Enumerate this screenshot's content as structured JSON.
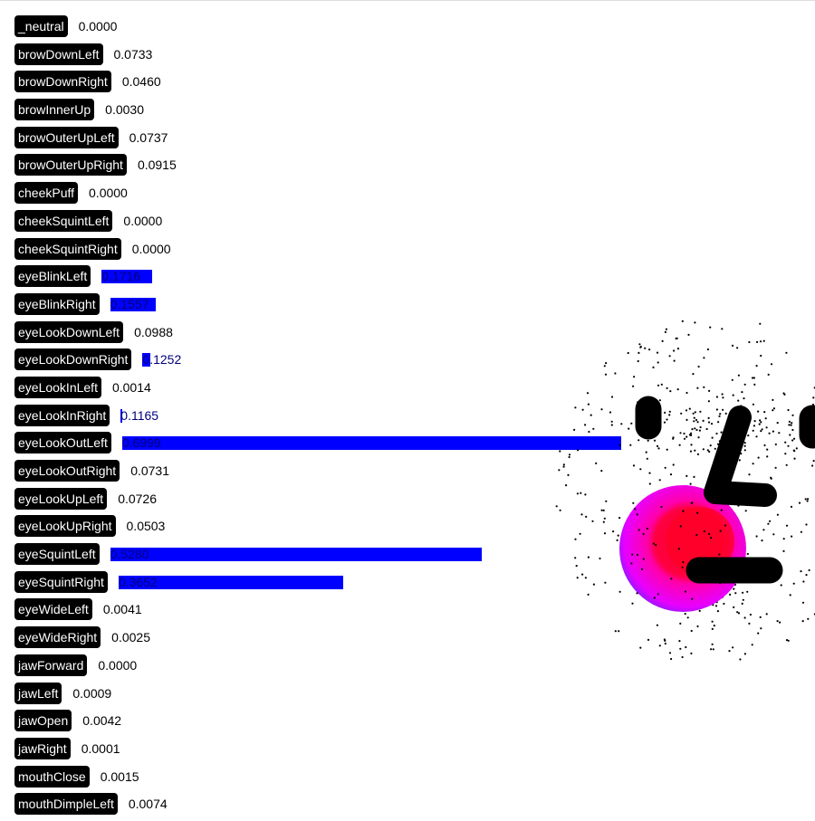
{
  "blendshapes": [
    {
      "name": "_neutral",
      "score": "0.0000"
    },
    {
      "name": "browDownLeft",
      "score": "0.0733"
    },
    {
      "name": "browDownRight",
      "score": "0.0460"
    },
    {
      "name": "browInnerUp",
      "score": "0.0030"
    },
    {
      "name": "browOuterUpLeft",
      "score": "0.0737"
    },
    {
      "name": "browOuterUpRight",
      "score": "0.0915"
    },
    {
      "name": "cheekPuff",
      "score": "0.0000"
    },
    {
      "name": "cheekSquintLeft",
      "score": "0.0000"
    },
    {
      "name": "cheekSquintRight",
      "score": "0.0000"
    },
    {
      "name": "eyeBlinkLeft",
      "score": "0.1716"
    },
    {
      "name": "eyeBlinkRight",
      "score": "0.1557"
    },
    {
      "name": "eyeLookDownLeft",
      "score": "0.0988"
    },
    {
      "name": "eyeLookDownRight",
      "score": "0.1252"
    },
    {
      "name": "eyeLookInLeft",
      "score": "0.0014"
    },
    {
      "name": "eyeLookInRight",
      "score": "0.1165"
    },
    {
      "name": "eyeLookOutLeft",
      "score": "0.6999"
    },
    {
      "name": "eyeLookOutRight",
      "score": "0.0731"
    },
    {
      "name": "eyeLookUpLeft",
      "score": "0.0726"
    },
    {
      "name": "eyeLookUpRight",
      "score": "0.0503"
    },
    {
      "name": "eyeSquintLeft",
      "score": "0.5280"
    },
    {
      "name": "eyeSquintRight",
      "score": "0.3652"
    },
    {
      "name": "eyeWideLeft",
      "score": "0.0041"
    },
    {
      "name": "eyeWideRight",
      "score": "0.0025"
    },
    {
      "name": "jawForward",
      "score": "0.0000"
    },
    {
      "name": "jawLeft",
      "score": "0.0009"
    },
    {
      "name": "jawOpen",
      "score": "0.0042"
    },
    {
      "name": "jawRight",
      "score": "0.0001"
    },
    {
      "name": "mouthClose",
      "score": "0.0015"
    },
    {
      "name": "mouthDimpleLeft",
      "score": "0.0074"
    }
  ],
  "colors": {
    "bar": "#0000ff",
    "label_bg": "#000000",
    "face_features": "#000000",
    "cheek_outer": "#ff00ff",
    "cheek_inner": "#ff0022"
  }
}
